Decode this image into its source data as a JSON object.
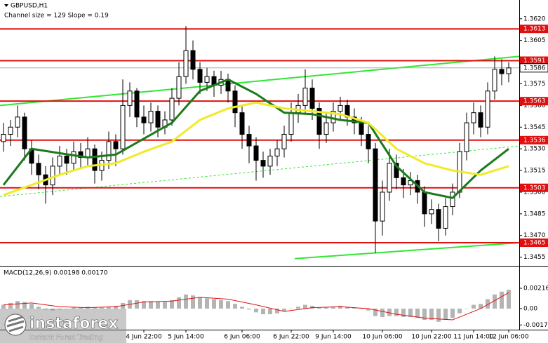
{
  "header": {
    "symbol": "GBPUSD,H1",
    "info": "Channel size = 129 Slope = 0.19"
  },
  "logo": {
    "brand": "instaforex",
    "tagline": "Instant Forex Trading"
  },
  "chart_data": [
    {
      "type": "candlestick",
      "categories": [
        null,
        null,
        null,
        null,
        null,
        null,
        null,
        null,
        null,
        null,
        null,
        null,
        null,
        null,
        null,
        null,
        null,
        null,
        null,
        null,
        "4 Jun 22:00",
        null,
        null,
        null,
        null,
        null,
        "5 Jun 14:00",
        null,
        null,
        null,
        null,
        null,
        null,
        null,
        "6 Jun 06:00",
        null,
        null,
        null,
        null,
        null,
        null,
        "6 Jun 22:00",
        null,
        null,
        null,
        null,
        null,
        "9 Jun 14:00",
        null,
        null,
        null,
        null,
        null,
        null,
        "10 Jun 06:00",
        null,
        null,
        null,
        null,
        null,
        null,
        "10 Jun 22:00",
        null,
        null,
        null,
        null,
        null,
        "11 Jun 14:00",
        null,
        null,
        null,
        null,
        "12 Jun 06:00"
      ],
      "open": [
        1.3535,
        1.354,
        1.3545,
        1.3552,
        1.353,
        1.352,
        1.3512,
        1.3505,
        1.3518,
        1.3525,
        1.352,
        1.3528,
        1.3524,
        1.353,
        1.3515,
        1.3522,
        1.3535,
        1.353,
        1.356,
        1.357,
        1.3552,
        1.3548,
        1.3556,
        1.3545,
        1.355,
        1.3565,
        1.358,
        1.3598,
        1.3585,
        1.3576,
        1.358,
        1.3574,
        1.3578,
        1.357,
        1.3555,
        1.354,
        1.3532,
        1.3522,
        1.3518,
        1.3525,
        1.353,
        1.354,
        1.3555,
        1.356,
        1.3572,
        1.3558,
        1.354,
        1.3548,
        1.3556,
        1.356,
        1.3552,
        1.3548,
        1.354,
        1.353,
        1.348,
        1.35,
        1.352,
        1.351,
        1.3505,
        1.3508,
        1.35,
        1.3485,
        1.3488,
        1.3475,
        1.349,
        1.35,
        1.3528,
        1.3548,
        1.3555,
        1.3545,
        1.357,
        1.3585,
        1.3582
      ],
      "high": [
        1.3548,
        1.355,
        1.356,
        1.3555,
        1.3536,
        1.3526,
        1.3518,
        1.3524,
        1.3532,
        1.353,
        1.3535,
        1.3534,
        1.3538,
        1.3533,
        1.3528,
        1.3542,
        1.354,
        1.3578,
        1.3576,
        1.3572,
        1.356,
        1.3562,
        1.356,
        1.3556,
        1.3572,
        1.359,
        1.3615,
        1.3605,
        1.359,
        1.3586,
        1.3584,
        1.3584,
        1.3582,
        1.3574,
        1.356,
        1.3546,
        1.3538,
        1.3528,
        1.353,
        1.3536,
        1.3546,
        1.3562,
        1.3568,
        1.3585,
        1.3578,
        1.3562,
        1.3555,
        1.3562,
        1.3566,
        1.3564,
        1.3558,
        1.3552,
        1.3546,
        1.3534,
        1.3508,
        1.353,
        1.3526,
        1.3516,
        1.3514,
        1.3512,
        1.3504,
        1.3495,
        1.3492,
        1.3496,
        1.3506,
        1.3534,
        1.3555,
        1.3562,
        1.356,
        1.3576,
        1.3594,
        1.3592,
        1.359
      ],
      "low": [
        1.3528,
        1.3532,
        1.3538,
        1.3522,
        1.3512,
        1.3502,
        1.3492,
        1.3498,
        1.3512,
        1.3512,
        1.3515,
        1.3516,
        1.3518,
        1.3506,
        1.3508,
        1.3516,
        1.3518,
        1.3526,
        1.3552,
        1.3545,
        1.354,
        1.3542,
        1.3538,
        1.354,
        1.3546,
        1.356,
        1.3575,
        1.3578,
        1.3568,
        1.357,
        1.3566,
        1.3568,
        1.3562,
        1.3545,
        1.353,
        1.352,
        1.3508,
        1.351,
        1.3512,
        1.3518,
        1.3524,
        1.3535,
        1.3548,
        1.3554,
        1.355,
        1.353,
        1.3534,
        1.3542,
        1.355,
        1.3546,
        1.354,
        1.3532,
        1.352,
        1.3458,
        1.347,
        1.3494,
        1.3502,
        1.3496,
        1.3498,
        1.3492,
        1.3476,
        1.3478,
        1.3466,
        1.347,
        1.3484,
        1.3496,
        1.3522,
        1.354,
        1.3538,
        1.354,
        1.3564,
        1.3574,
        1.3576
      ],
      "close": [
        1.354,
        1.3545,
        1.3552,
        1.353,
        1.352,
        1.3512,
        1.3505,
        1.3518,
        1.3525,
        1.352,
        1.3528,
        1.3524,
        1.353,
        1.3515,
        1.3522,
        1.3535,
        1.353,
        1.356,
        1.357,
        1.3552,
        1.3548,
        1.3556,
        1.3545,
        1.355,
        1.3565,
        1.358,
        1.3598,
        1.3585,
        1.3576,
        1.358,
        1.3574,
        1.3578,
        1.357,
        1.3555,
        1.354,
        1.3532,
        1.3522,
        1.3518,
        1.3525,
        1.353,
        1.354,
        1.3555,
        1.356,
        1.3572,
        1.3558,
        1.354,
        1.3548,
        1.3556,
        1.356,
        1.3552,
        1.3548,
        1.354,
        1.353,
        1.348,
        1.35,
        1.352,
        1.351,
        1.3505,
        1.3508,
        1.35,
        1.3485,
        1.3488,
        1.3475,
        1.349,
        1.35,
        1.3528,
        1.3548,
        1.3555,
        1.3545,
        1.357,
        1.3585,
        1.3582,
        1.3586
      ],
      "overlays": [
        {
          "color": "#1b7a1b",
          "x": [
            0,
            4,
            8,
            12,
            16,
            20,
            24,
            28,
            32,
            36,
            40,
            44,
            48,
            52,
            56,
            60,
            64,
            68,
            72
          ],
          "values": [
            1.3505,
            1.353,
            1.3527,
            1.3524,
            1.3526,
            1.3537,
            1.3548,
            1.357,
            1.3578,
            1.3568,
            1.3555,
            1.3554,
            1.355,
            1.3548,
            1.3518,
            1.35,
            1.3496,
            1.3515,
            1.353
          ]
        },
        {
          "color": "#f0ea28",
          "x": [
            0,
            4,
            8,
            12,
            16,
            20,
            24,
            28,
            32,
            36,
            40,
            44,
            48,
            52,
            56,
            60,
            64,
            68,
            72
          ],
          "values": [
            1.3498,
            1.3505,
            1.3512,
            1.3518,
            1.352,
            1.3528,
            1.3535,
            1.355,
            1.3558,
            1.3562,
            1.3558,
            1.3556,
            1.3554,
            1.3548,
            1.353,
            1.352,
            1.3515,
            1.3512,
            1.3518
          ]
        }
      ],
      "channel": [
        {
          "color": "#33e633",
          "dashed": false,
          "x": [
            -0.5,
            73.5
          ],
          "values": [
            1.356,
            1.3594
          ]
        },
        {
          "color": "#33e633",
          "dashed": false,
          "x": [
            41.5,
            73.5
          ],
          "values": [
            1.3454,
            1.3465
          ]
        },
        {
          "color": "#33e633",
          "dashed": true,
          "x": [
            -0.5,
            73.5
          ],
          "values": [
            1.3497,
            1.3532
          ]
        }
      ],
      "levels": [
        1.3613,
        1.3591,
        1.3563,
        1.3536,
        1.3503,
        1.3465
      ],
      "level_color": "#e01010",
      "last_price": 1.3586,
      "ylim": [
        1.3449,
        1.3633
      ],
      "yticks": [
        {
          "value": 1.362,
          "label": "1.3620"
        },
        1.3605,
        1.3575,
        {
          "value": 1.356,
          "label": "1.3560"
        },
        1.3545,
        {
          "value": 1.353,
          "label": "1.3530"
        },
        1.3515,
        {
          "value": 1.35,
          "label": "1.3500"
        },
        1.3485,
        {
          "value": 1.347,
          "label": "1.3470"
        },
        1.3455
      ]
    },
    {
      "type": "macd",
      "title": "MACD(12,26,9) 0.00198 0.00170",
      "values": [
        0.0004,
        0.0006,
        0.0008,
        0.0007,
        0.0005,
        0.0002,
        -0.0001,
        -0.0002,
        -0.0001,
        0,
        0.0001,
        0.0001,
        0.0002,
        0.0001,
        0.0001,
        0.0002,
        0.0003,
        0.0006,
        0.0009,
        0.0009,
        0.0008,
        0.0008,
        0.0007,
        0.0007,
        0.0009,
        0.0012,
        0.0015,
        0.0014,
        0.0012,
        0.0011,
        0.001,
        0.0009,
        0.0008,
        0.0005,
        0.0002,
        -0.0001,
        -0.0004,
        -0.0006,
        -0.0006,
        -0.0005,
        -0.0003,
        0,
        0.0002,
        0.0004,
        0.0003,
        0.0001,
        0.0001,
        0.0002,
        0.0003,
        0.0002,
        0.0001,
        0,
        -0.0002,
        -0.0008,
        -0.0009,
        -0.0008,
        -0.0008,
        -0.0009,
        -0.0009,
        -0.001,
        -0.0012,
        -0.0012,
        -0.0014,
        -0.0012,
        -0.001,
        -0.0005,
        0,
        0.0004,
        0.0005,
        0.001,
        0.0015,
        0.0018,
        0.002
      ],
      "color": "#b4b4b4",
      "signal": {
        "color": "#e01010",
        "x": [
          0,
          4,
          8,
          12,
          16,
          20,
          24,
          28,
          32,
          36,
          40,
          44,
          48,
          52,
          56,
          60,
          64,
          68,
          72
        ],
        "values": [
          0.0004,
          0.0006,
          0.0002,
          0.0001,
          0.0002,
          0.0007,
          0.0008,
          0.0012,
          0.001,
          0.0004,
          -0.0003,
          0.0001,
          0.0002,
          0,
          -0.0006,
          -0.001,
          -0.0012,
          0,
          0.0017
        ]
      },
      "ylim": [
        -0.00224,
        0.00447
      ],
      "yticks": [
        0.00216,
        {
          "value": 0,
          "label": "0.00"
        },
        -0.00174
      ]
    }
  ]
}
